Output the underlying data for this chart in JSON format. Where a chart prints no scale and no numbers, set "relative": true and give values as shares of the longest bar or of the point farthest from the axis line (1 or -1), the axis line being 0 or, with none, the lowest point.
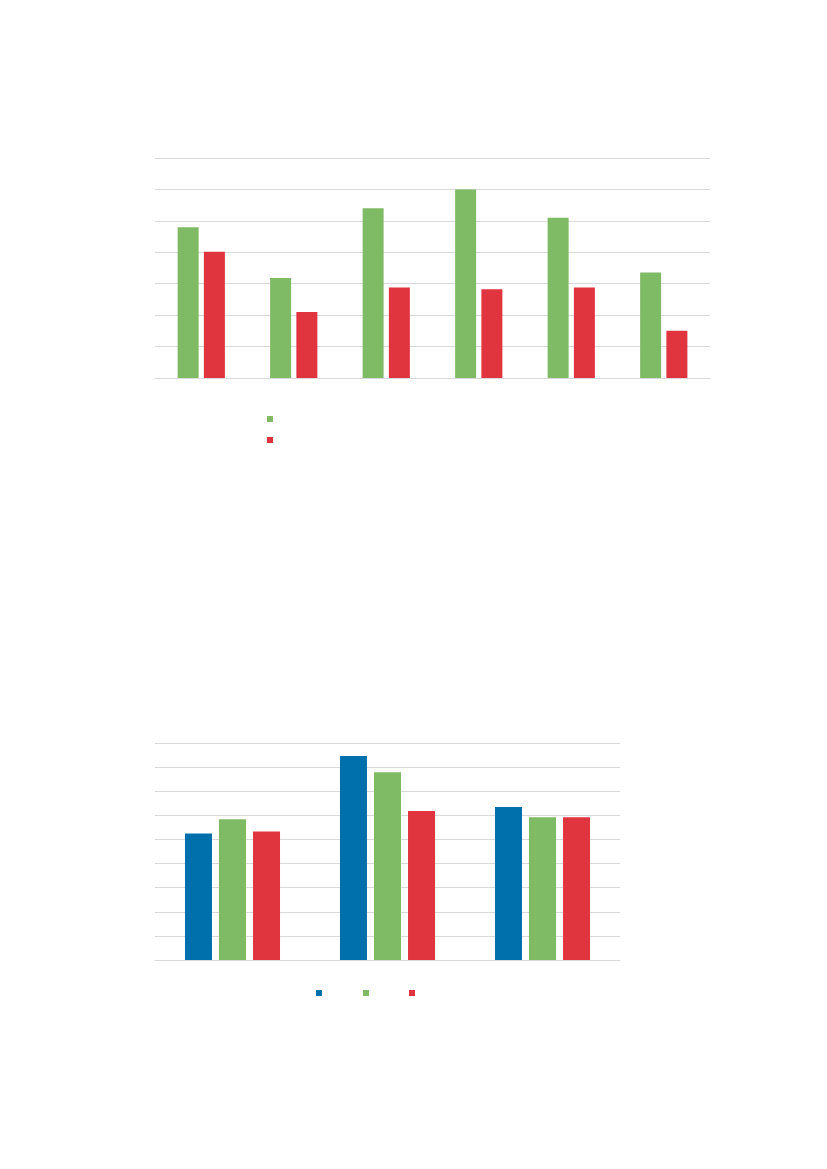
{
  "chart_data": [
    {
      "type": "bar",
      "relative": true,
      "grid": true,
      "categories": [
        null,
        null,
        null,
        null,
        null,
        null
      ],
      "series": [
        {
          "color": "#7fba65",
          "values": [
            0.8,
            0.53,
            0.9,
            1,
            0.85,
            0.56
          ]
        },
        {
          "color": "#e0343f",
          "values": [
            0.67,
            0.35,
            0.48,
            0.47,
            0.48,
            0.25
          ]
        }
      ]
    },
    {
      "type": "bar",
      "relative": true,
      "grid": true,
      "categories": [
        null,
        null,
        null
      ],
      "series": [
        {
          "color": "#0070ad",
          "values": [
            0.62,
            1,
            0.75
          ]
        },
        {
          "color": "#7fba65",
          "values": [
            0.69,
            0.92,
            0.7
          ]
        },
        {
          "color": "#e0343f",
          "values": [
            0.63,
            0.73,
            0.7
          ]
        }
      ]
    }
  ]
}
